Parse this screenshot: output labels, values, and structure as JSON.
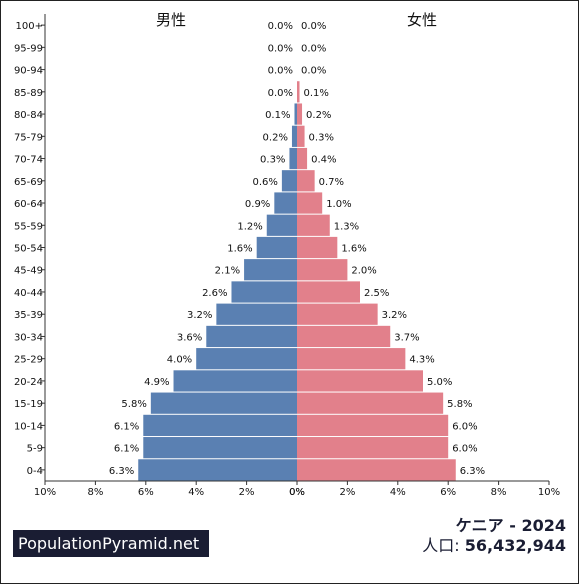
{
  "chart_data": {
    "type": "bar",
    "male_label": "男性",
    "female_label": "女性",
    "categories": [
      "100+",
      "95-99",
      "90-94",
      "85-89",
      "80-84",
      "75-79",
      "70-74",
      "65-69",
      "60-64",
      "55-59",
      "50-54",
      "45-49",
      "40-44",
      "35-39",
      "30-34",
      "25-29",
      "20-24",
      "15-19",
      "10-14",
      "5-9",
      "0-4"
    ],
    "series": [
      {
        "name": "男性",
        "color": "#5a80b2",
        "values": [
          0.0,
          0.0,
          0.0,
          0.0,
          0.1,
          0.2,
          0.3,
          0.6,
          0.9,
          1.2,
          1.6,
          2.1,
          2.6,
          3.2,
          3.6,
          4.0,
          4.9,
          5.8,
          6.1,
          6.1,
          6.3
        ]
      },
      {
        "name": "女性",
        "color": "#e2808b",
        "values": [
          0.0,
          0.0,
          0.0,
          0.1,
          0.2,
          0.3,
          0.4,
          0.7,
          1.0,
          1.3,
          1.6,
          2.0,
          2.5,
          3.2,
          3.7,
          4.3,
          5.0,
          5.8,
          6.0,
          6.0,
          6.3
        ]
      }
    ],
    "x_ticks": [
      "10%",
      "8%",
      "6%",
      "4%",
      "2%",
      "0%"
    ],
    "x_max": 10,
    "grid": false
  },
  "footer": {
    "site": "PopulationPyramid.net",
    "country": "ケニア - 2024",
    "population_label": "人口:",
    "population_value": "56,432,944"
  }
}
